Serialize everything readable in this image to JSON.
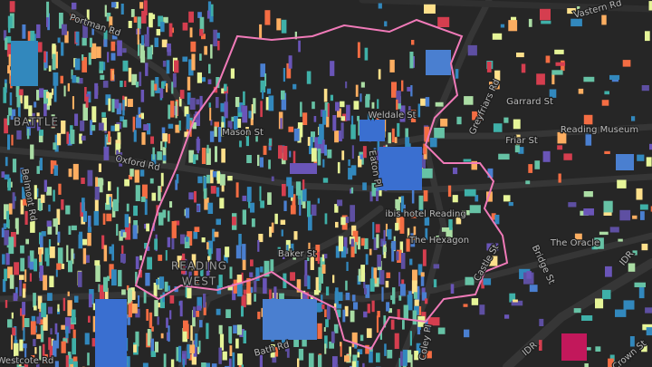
{
  "map": {
    "labels": [
      "Portman Rd",
      "Vastern Rd",
      "BATTLE",
      "Oxford Rd",
      "Mason St",
      "Weldale St",
      "Greyfriars Rd",
      "Garrard St",
      "Friar St",
      "Reading Museum",
      "Eaton Pl",
      "ibis hotel Reading",
      "The Hexagon",
      "Castle St",
      "Bridge St",
      "The Oracle",
      "IDR",
      "IDR",
      "Crown St",
      "Coley Pl",
      "Bath Rd",
      "Baker St",
      "READING",
      "WEST",
      "Westcote Rd",
      "Belmont Rd"
    ]
  }
}
